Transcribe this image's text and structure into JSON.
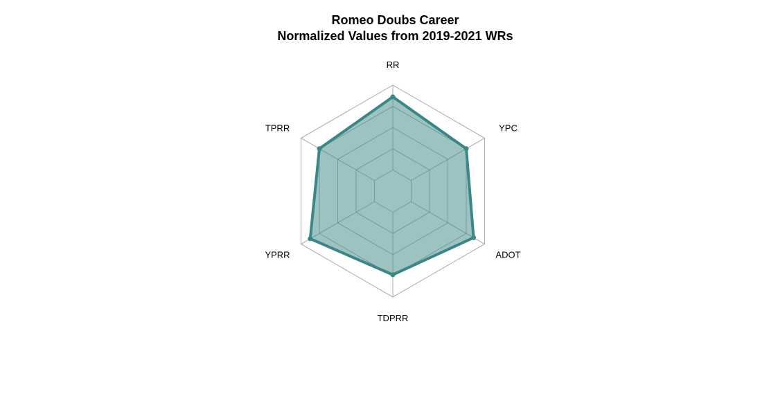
{
  "chart_data": {
    "type": "radar",
    "title": "Romeo Doubs Career",
    "subtitle": "Normalized Values from 2019-2021 WRs",
    "axes": [
      "RR",
      "YPC",
      "ADOT",
      "TDPRR",
      "YPRR",
      "TPRR"
    ],
    "series": [
      {
        "values": [
          0.89,
          0.8,
          0.88,
          0.79,
          0.9,
          0.8
        ]
      }
    ],
    "range": [
      0,
      1
    ],
    "grid_levels": 5,
    "colors": {
      "line": "#3b8686",
      "fill": "#3b8686",
      "grid": "#999999"
    }
  }
}
